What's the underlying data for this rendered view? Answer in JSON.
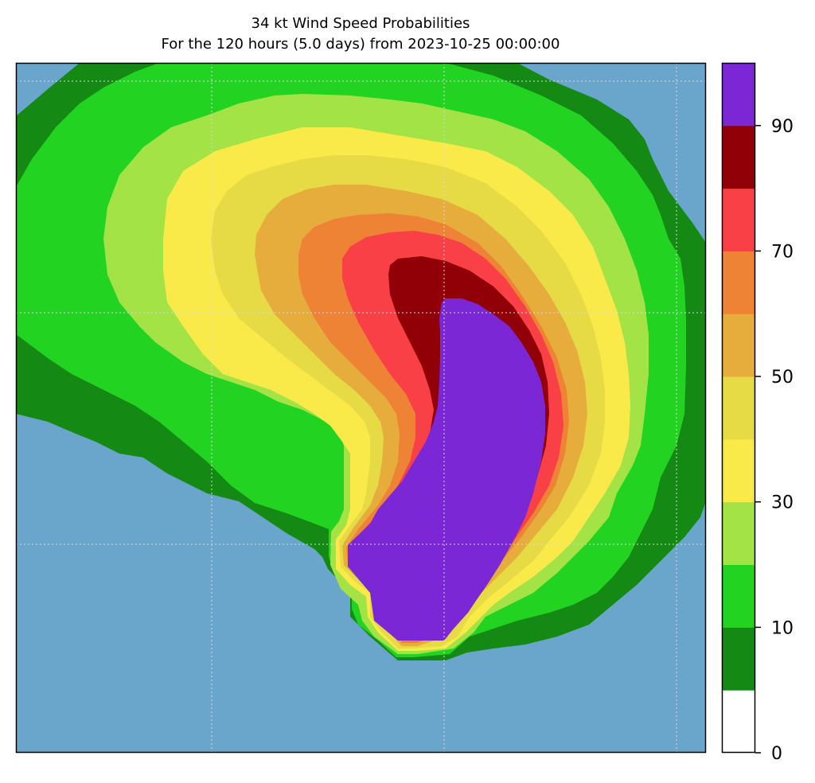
{
  "title": "34 kt Wind Speed Probabilities",
  "subtitle": "For the 120 hours (5.0 days) from 2023-10-25 00:00:00",
  "colors": {
    "background_sea": "#6aa6cb",
    "frame": "#000000",
    "grid": "#d9d9d9"
  },
  "colorbar": {
    "min": 0,
    "max": 100,
    "step": 10,
    "tick_labels": [
      "0",
      "10",
      "30",
      "50",
      "70",
      "90"
    ],
    "tick_values": [
      0,
      10,
      30,
      50,
      70,
      90
    ],
    "band_colors": [
      "#ffffff",
      "#148a14",
      "#22d322",
      "#a3e345",
      "#f9ea49",
      "#e6db45",
      "#e6ad3c",
      "#ee8235",
      "#f94046",
      "#910006",
      "#7b27d6"
    ]
  },
  "map": {
    "grid": "dotted",
    "contour_levels": [
      5,
      10,
      20,
      30,
      40,
      50,
      60,
      70,
      80,
      90
    ]
  }
}
